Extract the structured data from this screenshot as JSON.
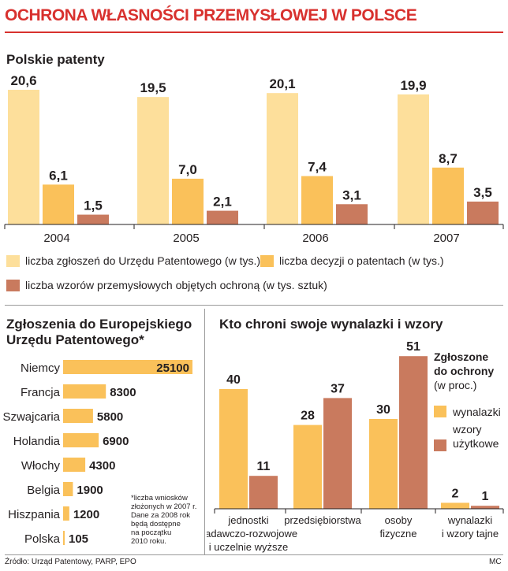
{
  "title": "OCHRONA WŁASNOŚCI PRZEMYSŁOWEJ W POLSCE",
  "colors": {
    "light": "#fddf9b",
    "medium": "#fac15a",
    "dark": "#c97a5e",
    "accent": "#d8312e",
    "text": "#231f20"
  },
  "legend": {
    "applications": "liczba zgłoszeń do Urzędu Patentowego (w tys.)",
    "decisions": "liczba decyzji o patentach (w tys.)",
    "designs": "liczba wzorów przemysłowych objętych ochroną (w tys. sztuk)"
  },
  "note": [
    "*liczba wniosków",
    "złożonych w 2007 r.",
    "Dane za 2008 rok",
    "będą dostępne",
    "na początku",
    "2010 roku."
  ],
  "source": "Źródło: Urząd Patentowy, PARP, EPO",
  "author": "MC",
  "chart_data": [
    {
      "type": "bar",
      "title": "Polskie patenty",
      "categories": [
        "2004",
        "2005",
        "2006",
        "2007"
      ],
      "ylim": [
        0,
        22
      ],
      "series": [
        {
          "name": "liczba zgłoszeń do Urzędu Patentowego (w tys.)",
          "values": [
            20.6,
            19.5,
            20.1,
            19.9
          ],
          "labels": [
            "20,6",
            "19,5",
            "20,1",
            "19,9"
          ]
        },
        {
          "name": "liczba decyzji o patentach (w tys.)",
          "values": [
            6.1,
            7.0,
            7.4,
            8.7
          ],
          "labels": [
            "6,1",
            "7,0",
            "7,4",
            "8,7"
          ]
        },
        {
          "name": "liczba wzorów przemysłowych objętych ochroną (w tys. sztuk)",
          "values": [
            1.5,
            2.1,
            3.1,
            3.5
          ],
          "labels": [
            "1,5",
            "2,1",
            "3,1",
            "3,5"
          ]
        }
      ]
    },
    {
      "type": "bar",
      "orientation": "horizontal",
      "title_lines": [
        "Zgłoszenia do Europejskiego",
        "Urzędu Patentowego*"
      ],
      "categories": [
        "Niemcy",
        "Francja",
        "Szwajcaria",
        "Holandia",
        "Włochy",
        "Belgia",
        "Hiszpania",
        "Polska"
      ],
      "values": [
        25100,
        8300,
        5800,
        6900,
        4300,
        1900,
        1200,
        105
      ],
      "labels": [
        "25100",
        "8300",
        "5800",
        "6900",
        "4300",
        "1900",
        "1200",
        "105"
      ],
      "xlim": [
        0,
        25100
      ]
    },
    {
      "type": "bar",
      "title": "Kto chroni swoje wynalazki i wzory",
      "categories": [
        [
          "jednostki",
          "badawczo-rozwojowe",
          "i uczelnie wyższe"
        ],
        [
          "przedsiębiorstwa"
        ],
        [
          "osoby",
          "fizyczne"
        ],
        [
          "wynalazki",
          "i wzory tajne"
        ]
      ],
      "ylim": [
        0,
        55
      ],
      "legend_title": [
        "Zgłoszone",
        "do ochrony"
      ],
      "legend_subtitle": "(w proc.)",
      "series": [
        {
          "name": "wynalazki",
          "values": [
            40,
            28,
            30,
            2
          ]
        },
        {
          "name_lines": [
            "wzory",
            "użytkowe"
          ],
          "values": [
            11,
            37,
            51,
            1
          ]
        }
      ]
    }
  ]
}
